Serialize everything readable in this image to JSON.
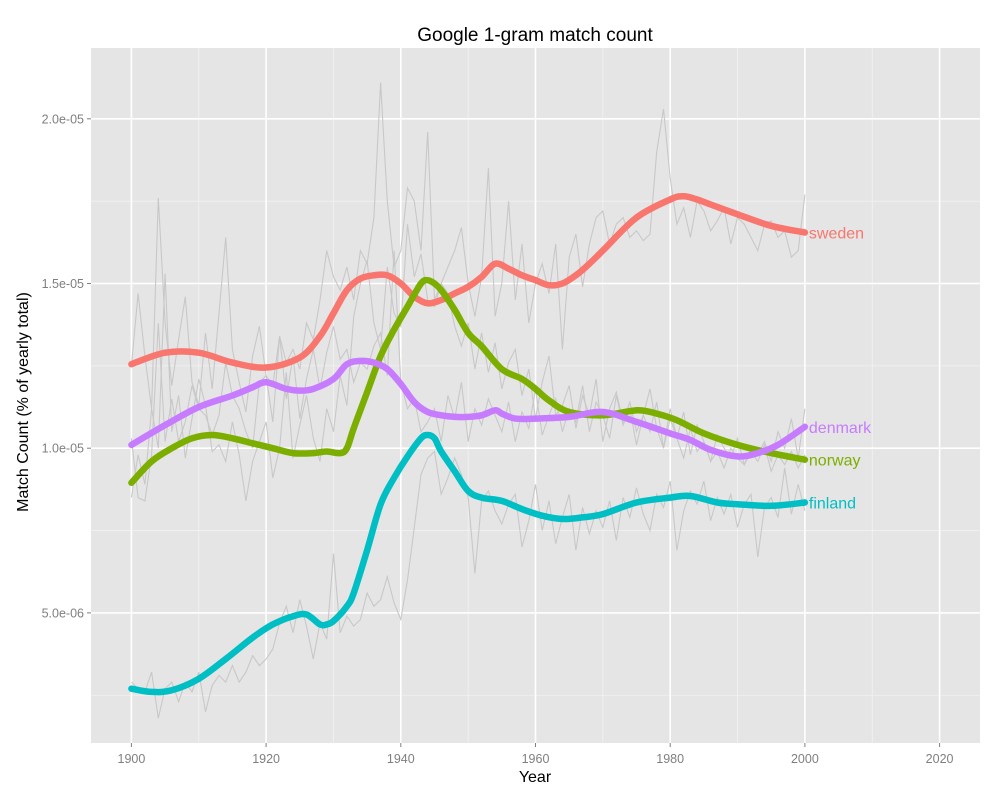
{
  "chart_data": {
    "type": "line",
    "title": "Google 1-gram match count",
    "xlabel": "Year",
    "ylabel": "Match Count (% of yearly total)",
    "xlim": [
      1894,
      2026
    ],
    "ylim": [
      1.05e-06,
      2.215e-05
    ],
    "x_ticks": [
      1900,
      1920,
      1940,
      1960,
      1980,
      2000,
      2020
    ],
    "x_tick_labels": [
      "1900",
      "1920",
      "1940",
      "1960",
      "1980",
      "2000",
      "2020"
    ],
    "y_ticks": [
      5e-06,
      1e-05,
      1.5e-05,
      2e-05
    ],
    "y_tick_labels": [
      "5.0e-06",
      "1.0e-05",
      "1.5e-05",
      "2.0e-05"
    ],
    "grid": true,
    "legend": "direct labels at line ends",
    "colors": {
      "panel": "#e5e5e5",
      "grid_major": "#ffffff",
      "grid_minor": "#f2f2f2",
      "raw": "#c8c8c8"
    },
    "series": [
      {
        "name": "sweden",
        "color": "#f8766d",
        "x": [
          1900,
          1905,
          1910,
          1915,
          1920,
          1925,
          1928,
          1930,
          1932,
          1934,
          1936,
          1938,
          1940,
          1942,
          1944,
          1946,
          1948,
          1950,
          1952,
          1954,
          1956,
          1958,
          1960,
          1962,
          1964,
          1966,
          1968,
          1970,
          1975,
          1980,
          1982,
          1984,
          1986,
          1990,
          1995,
          2000
        ],
        "values": [
          1.255e-05,
          1.29e-05,
          1.29e-05,
          1.26e-05,
          1.245e-05,
          1.275e-05,
          1.34e-05,
          1.41e-05,
          1.48e-05,
          1.515e-05,
          1.525e-05,
          1.525e-05,
          1.5e-05,
          1.46e-05,
          1.44e-05,
          1.45e-05,
          1.47e-05,
          1.49e-05,
          1.52e-05,
          1.56e-05,
          1.545e-05,
          1.525e-05,
          1.51e-05,
          1.495e-05,
          1.5e-05,
          1.525e-05,
          1.56e-05,
          1.6e-05,
          1.7e-05,
          1.755e-05,
          1.765e-05,
          1.755e-05,
          1.74e-05,
          1.71e-05,
          1.675e-05,
          1.655e-05
        ]
      },
      {
        "name": "norway",
        "color": "#7cae00",
        "x": [
          1900,
          1903,
          1906,
          1909,
          1912,
          1915,
          1918,
          1921,
          1924,
          1927,
          1929,
          1931,
          1932,
          1933,
          1935,
          1937,
          1939,
          1941,
          1943,
          1944,
          1945,
          1946,
          1948,
          1950,
          1952,
          1955,
          1958,
          1960,
          1962,
          1965,
          1970,
          1975,
          1978,
          1981,
          1985,
          1990,
          1995,
          2000
        ],
        "values": [
          8.95e-06,
          9.6e-06,
          1e-05,
          1.03e-05,
          1.04e-05,
          1.03e-05,
          1.015e-05,
          1e-05,
          9.85e-06,
          9.85e-06,
          9.9e-06,
          9.85e-06,
          1e-05,
          1.06e-05,
          1.17e-05,
          1.28e-05,
          1.36e-05,
          1.43e-05,
          1.5e-05,
          1.51e-05,
          1.5e-05,
          1.48e-05,
          1.42e-05,
          1.35e-05,
          1.31e-05,
          1.24e-05,
          1.21e-05,
          1.18e-05,
          1.145e-05,
          1.11e-05,
          1.1e-05,
          1.115e-05,
          1.105e-05,
          1.085e-05,
          1.045e-05,
          1.01e-05,
          9.85e-06,
          9.65e-06
        ]
      },
      {
        "name": "denmark",
        "color": "#c77cff",
        "x": [
          1900,
          1905,
          1910,
          1915,
          1918,
          1920,
          1923,
          1925,
          1927,
          1930,
          1932,
          1934,
          1936,
          1938,
          1940,
          1942,
          1944,
          1946,
          1948,
          1950,
          1952,
          1954,
          1955,
          1957,
          1960,
          1965,
          1970,
          1975,
          1980,
          1983,
          1986,
          1990,
          1993,
          1996,
          2000
        ],
        "values": [
          1.01e-05,
          1.07e-05,
          1.125e-05,
          1.16e-05,
          1.185e-05,
          1.2e-05,
          1.18e-05,
          1.175e-05,
          1.18e-05,
          1.21e-05,
          1.255e-05,
          1.265e-05,
          1.26e-05,
          1.24e-05,
          1.195e-05,
          1.14e-05,
          1.11e-05,
          1.1e-05,
          1.095e-05,
          1.095e-05,
          1.1e-05,
          1.115e-05,
          1.105e-05,
          1.09e-05,
          1.09e-05,
          1.095e-05,
          1.11e-05,
          1.08e-05,
          1.045e-05,
          1.025e-05,
          9.95e-06,
          9.75e-06,
          9.85e-06,
          1.01e-05,
          1.065e-05
        ]
      },
      {
        "name": "finland",
        "color": "#00bfc4",
        "x": [
          1900,
          1903,
          1906,
          1910,
          1914,
          1918,
          1921,
          1924,
          1926,
          1928,
          1929,
          1930,
          1932,
          1933,
          1935,
          1937,
          1939,
          1941,
          1943,
          1944,
          1945,
          1946,
          1948,
          1950,
          1952,
          1955,
          1958,
          1961,
          1964,
          1967,
          1970,
          1975,
          1980,
          1983,
          1987,
          1990,
          1995,
          2000
        ],
        "values": [
          2.7e-06,
          2.6e-06,
          2.65e-06,
          3e-06,
          3.6e-06,
          4.25e-06,
          4.65e-06,
          4.9e-06,
          4.95e-06,
          4.65e-06,
          4.65e-06,
          4.75e-06,
          5.2e-06,
          5.6e-06,
          6.9e-06,
          8.3e-06,
          9.1e-06,
          9.75e-06,
          1.03e-05,
          1.04e-05,
          1.03e-05,
          9.9e-06,
          9.3e-06,
          8.7e-06,
          8.5e-06,
          8.4e-06,
          8.15e-06,
          7.95e-06,
          7.85e-06,
          7.9e-06,
          8e-06,
          8.35e-06,
          8.5e-06,
          8.55e-06,
          8.35e-06,
          8.3e-06,
          8.25e-06,
          8.35e-06
        ]
      }
    ],
    "raw_series": [
      [
        1.25e-05,
        1.47e-05,
        1.28e-05,
        1.12e-05,
        1.76e-05,
        1.38e-05,
        1.19e-05,
        1.33e-05,
        1.46e-05,
        1.2e-05,
        1.13e-05,
        1.35e-05,
        1.18e-05,
        1.41e-05,
        1.64e-05,
        1.3e-05,
        1.2e-05,
        1.11e-05,
        1.28e-05,
        1.37e-05,
        1.22e-05,
        1.19e-05,
        1.34e-05,
        1.26e-05,
        1.3e-05,
        1.24e-05,
        1.38e-05,
        1.33e-05,
        1.45e-05,
        1.6e-05,
        1.52e-05,
        1.48e-05,
        1.55e-05,
        1.45e-05,
        1.6e-05,
        1.56e-05,
        1.7e-05,
        2.11e-05,
        1.75e-05,
        1.55e-05,
        1.6e-05,
        1.79e-05,
        1.75e-05,
        1.6e-05,
        1.96e-05,
        1.45e-05,
        1.5e-05,
        1.55e-05,
        1.6e-05,
        1.67e-05,
        1.5e-05,
        1.4e-05,
        1.52e-05,
        1.85e-05,
        1.4e-05,
        1.5e-05,
        1.75e-05,
        1.45e-05,
        1.62e-05,
        1.38e-05,
        1.5e-05,
        1.56e-05,
        1.47e-05,
        1.62e-05,
        1.3e-05,
        1.58e-05,
        1.65e-05,
        1.49e-05,
        1.62e-05,
        1.7e-05,
        1.72e-05,
        1.62e-05,
        1.68e-05,
        1.7e-05,
        1.64e-05,
        1.66e-05,
        1.63e-05,
        1.65e-05,
        1.9e-05,
        2.03e-05,
        1.82e-05,
        1.68e-05,
        1.73e-05,
        1.64e-05,
        1.75e-05,
        1.72e-05,
        1.66e-05,
        1.69e-05,
        1.73e-05,
        1.62e-05,
        1.7e-05,
        1.68e-05,
        1.64e-05,
        1.6e-05,
        1.68e-05,
        1.69e-05,
        1.64e-05,
        1.66e-05,
        1.58e-05,
        1.6e-05,
        1.77e-05
      ],
      [
        8.5e-06,
        9.8e-06,
        8.9e-06,
        1.12e-05,
        1e-05,
        1.53e-05,
        1.05e-05,
        1.16e-05,
        9.7e-06,
        1.09e-05,
        1.21e-05,
        1.13e-05,
        9.9e-06,
        1.01e-05,
        9.6e-06,
        1.08e-05,
        9.8e-06,
        8.4e-06,
        9.6e-06,
        1.02e-05,
        1.08e-05,
        9.1e-06,
        1e-05,
        1.23e-05,
        9.7e-06,
        1.07e-05,
        1.16e-05,
        1.03e-05,
        9.6e-06,
        1.12e-05,
        1.05e-05,
        1.22e-05,
        1.13e-05,
        1.4e-05,
        1.5e-05,
        1.57e-05,
        1.38e-05,
        1.3e-05,
        1.55e-05,
        1.41e-05,
        1.37e-05,
        1.68e-05,
        1.52e-05,
        1.59e-05,
        1.45e-05,
        1.43e-05,
        1.5e-05,
        1.47e-05,
        1.37e-05,
        1.31e-05,
        1.38e-05,
        1.24e-05,
        1.35e-05,
        1.23e-05,
        1.32e-05,
        1.18e-05,
        1.26e-05,
        1.3e-05,
        1.16e-05,
        1.24e-05,
        1.09e-05,
        1.2e-05,
        1.28e-05,
        1.1e-05,
        1.13e-05,
        1.19e-05,
        1.06e-05,
        1.16e-05,
        1.1e-05,
        1.21e-05,
        1.02e-05,
        1.12e-05,
        1.17e-05,
        1.08e-05,
        1.14e-05,
        1.05e-05,
        1.1e-05,
        1.18e-05,
        1.06e-05,
        1e-05,
        1.12e-05,
        1.03e-05,
        1.11e-05,
        9.8e-06,
        1.07e-05,
        1.02e-05,
        9.6e-06,
        1.04e-05,
        1e-05,
        9.7e-06,
        1.03e-05,
        9.5e-06,
        9.9e-06,
        9.6e-06,
        1.01e-05,
        9.3e-06,
        9.8e-06,
        9.5e-06,
        9.9e-06,
        9.4e-06,
        9.8e-06
      ],
      [
        1.03e-05,
        8.5e-06,
        8.4e-06,
        9.8e-06,
        1.38e-05,
        1.02e-05,
        1.15e-05,
        1.02e-05,
        1.08e-05,
        1.19e-05,
        1.12e-05,
        1.1e-05,
        1.04e-05,
        1.1e-05,
        1.26e-05,
        1.16e-05,
        1.12e-05,
        1.05e-05,
        1e-05,
        1.2e-05,
        1.22e-05,
        1.08e-05,
        1.34e-05,
        1.15e-05,
        1.28e-05,
        1.09e-05,
        1.21e-05,
        1.3e-05,
        1.18e-05,
        1.29e-05,
        1.37e-05,
        1.27e-05,
        1.3e-05,
        1.2e-05,
        1.26e-05,
        1.24e-05,
        1.31e-05,
        1.35e-05,
        1.22e-05,
        1.6e-05,
        1.2e-05,
        1.12e-05,
        1.15e-05,
        1.05e-05,
        1.08e-05,
        1.12e-05,
        1.02e-05,
        1.16e-05,
        1.09e-05,
        1.2e-05,
        1.02e-05,
        1.12e-05,
        1.07e-05,
        1.15e-05,
        1.1e-05,
        1.05e-05,
        1.14e-05,
        1.02e-05,
        1.11e-05,
        1.06e-05,
        1.18e-05,
        1.04e-05,
        1.1e-05,
        1.15e-05,
        1.05e-05,
        1.12e-05,
        1.08e-05,
        1.19e-05,
        1.05e-05,
        1.14e-05,
        1.1e-05,
        1.03e-05,
        1.16e-05,
        1.07e-05,
        1.12e-05,
        1.01e-05,
        1.1e-05,
        1.05e-05,
        1.14e-05,
        1e-05,
        1.09e-05,
        1.03e-05,
        9.7e-06,
        1.06e-05,
        9.9e-06,
        1.02e-05,
        9.6e-06,
        9.9e-06,
        9.4e-06,
        1e-05,
        9.7e-06,
        9.5e-06,
        1e-05,
        9.8e-06,
        1.02e-05,
        9.6e-06,
        1.05e-05,
        1e-05,
        1.09e-05,
        9.7e-06,
        1.12e-05
      ],
      [
        2.9e-06,
        2.7e-06,
        2.6e-06,
        3.2e-06,
        1.8e-06,
        2.7e-06,
        2.9e-06,
        2.3e-06,
        2.9e-06,
        2.6e-06,
        3.2e-06,
        2e-06,
        2.8e-06,
        3.1e-06,
        2.9e-06,
        3.4e-06,
        2.9e-06,
        3.2e-06,
        3.7e-06,
        3.4e-06,
        3.6e-06,
        3.9e-06,
        4.7e-06,
        5.2e-06,
        4.4e-06,
        5.4e-06,
        4.6e-06,
        3.6e-06,
        4.7e-06,
        4.2e-06,
        6.8e-06,
        4.4e-06,
        4.9e-06,
        4.6e-06,
        4.8e-06,
        5.6e-06,
        5.2e-06,
        5.4e-06,
        6.1e-06,
        5.3e-06,
        4.8e-06,
        6e-06,
        7.6e-06,
        9.2e-06,
        9.7e-06,
        9.9e-06,
        8.6e-06,
        9.1e-06,
        9.7e-06,
        9.2e-06,
        8.5e-06,
        6.2e-06,
        8.4e-06,
        8.7e-06,
        8.1e-06,
        7.7e-06,
        8.3e-06,
        8.6e-06,
        7e-06,
        7.8e-06,
        8.9e-06,
        7.5e-06,
        8.4e-06,
        7.1e-06,
        7.9e-06,
        8.6e-06,
        6.9e-06,
        8.2e-06,
        7.4e-06,
        8.1e-06,
        7.6e-06,
        8.4e-06,
        7.2e-06,
        8.5e-06,
        7.9e-06,
        8.8e-06,
        8e-06,
        7.5e-06,
        8.6e-06,
        8.2e-06,
        9e-06,
        6.9e-06,
        8.1e-06,
        8.7e-06,
        8.3e-06,
        9e-06,
        7.8e-06,
        8.5e-06,
        8e-06,
        8.6e-06,
        7.6e-06,
        8.3e-06,
        8.6e-06,
        6.7e-06,
        8.2e-06,
        8.5e-06,
        7.9e-06,
        9.4e-06,
        8e-06,
        8.9e-06,
        8.1e-06
      ]
    ]
  }
}
